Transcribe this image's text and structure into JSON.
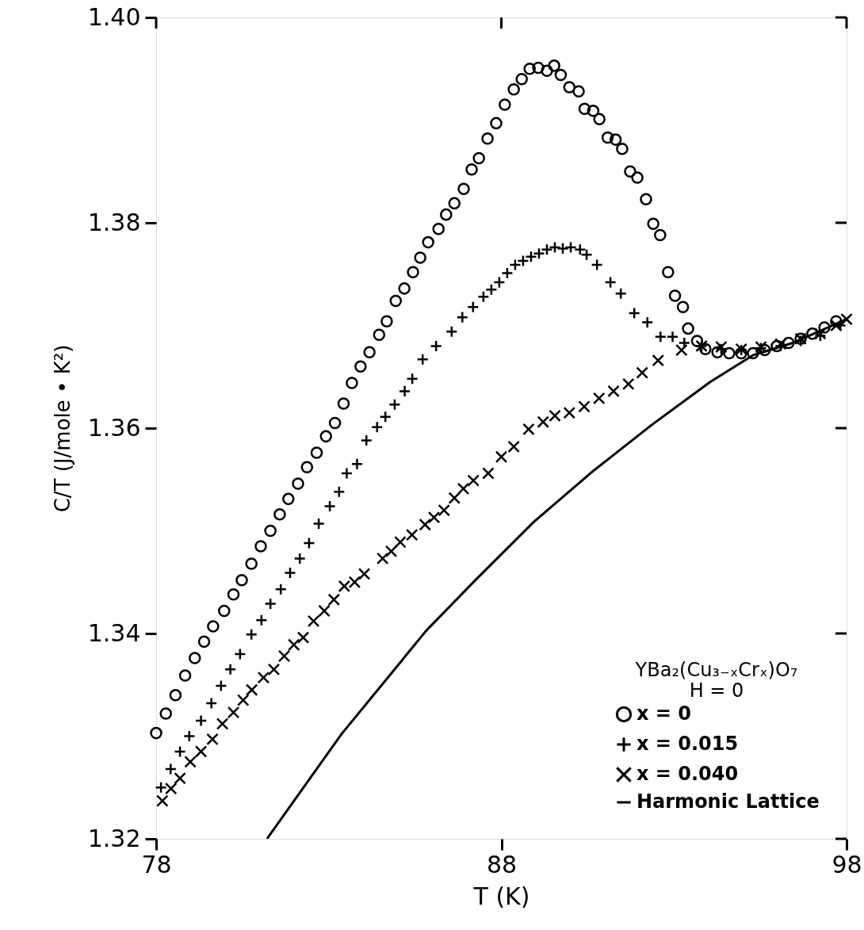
{
  "chart_data": {
    "type": "scatter",
    "xlabel": "T (K)",
    "ylabel": "C/T (J/mole • K²)",
    "legend_title": "YBa₂(Cu₃₋ₓCrₓ)O₇",
    "annotations": [
      "H = 0"
    ],
    "legend": "bottom right",
    "grid": false,
    "xlim": [
      78,
      98
    ],
    "xticks": [
      78,
      88,
      98
    ],
    "ylim": [
      1.32,
      1.4
    ],
    "yticks": [
      1.32,
      1.34,
      1.36,
      1.38,
      {
        "value": 1.4,
        "label": "1.40"
      }
    ],
    "series": [
      {
        "name": "x = 0",
        "color": "#000000",
        "marker": "circle",
        "x": [
          78.0,
          78.28,
          78.56,
          78.84,
          79.12,
          79.39,
          79.65,
          79.97,
          80.24,
          80.48,
          80.76,
          81.03,
          81.31,
          81.58,
          81.83,
          82.11,
          82.37,
          82.65,
          82.92,
          83.18,
          83.43,
          83.67,
          83.92,
          84.18,
          84.46,
          84.68,
          84.94,
          85.19,
          85.44,
          85.65,
          85.88,
          86.18,
          86.4,
          86.64,
          86.91,
          87.14,
          87.35,
          87.6,
          87.85,
          88.1,
          88.36,
          88.59,
          88.82,
          89.07,
          89.32,
          89.53,
          89.72,
          89.97,
          90.24,
          90.41,
          90.66,
          90.84,
          91.08,
          91.31,
          91.5,
          91.73,
          91.94,
          92.19,
          92.4,
          92.6,
          92.83,
          93.03,
          93.26,
          93.41,
          93.67,
          93.91,
          94.26,
          94.6,
          94.95,
          95.29,
          95.63,
          95.98,
          96.32,
          96.67,
          97.01,
          97.36,
          97.7
        ],
        "values": [
          1.3303,
          1.3322,
          1.334,
          1.3359,
          1.3376,
          1.3392,
          1.3407,
          1.3422,
          1.3438,
          1.3452,
          1.3468,
          1.3485,
          1.35,
          1.3516,
          1.3531,
          1.3546,
          1.3562,
          1.3576,
          1.3592,
          1.3605,
          1.3624,
          1.3644,
          1.366,
          1.3674,
          1.3691,
          1.3704,
          1.3724,
          1.3736,
          1.3752,
          1.3766,
          1.3781,
          1.3794,
          1.3808,
          1.3819,
          1.3833,
          1.3852,
          1.3863,
          1.3882,
          1.3897,
          1.3915,
          1.393,
          1.394,
          1.395,
          1.3951,
          1.3948,
          1.3953,
          1.3944,
          1.3932,
          1.3928,
          1.3911,
          1.3909,
          1.3901,
          1.3883,
          1.3881,
          1.3872,
          1.385,
          1.3844,
          1.3823,
          1.3799,
          1.3788,
          1.3752,
          1.3729,
          1.3718,
          1.3697,
          1.3685,
          1.3677,
          1.3674,
          1.3673,
          1.3673,
          1.3673,
          1.3676,
          1.368,
          1.3683,
          1.3687,
          1.3692,
          1.3698,
          1.3704
        ]
      },
      {
        "name": "x = 0.015",
        "color": "#000000",
        "marker": "cross",
        "x": [
          78.14,
          78.42,
          78.69,
          78.96,
          79.3,
          79.6,
          79.88,
          80.15,
          80.43,
          80.76,
          81.05,
          81.31,
          81.61,
          81.88,
          82.16,
          82.43,
          82.71,
          83.03,
          83.3,
          83.52,
          83.82,
          84.09,
          84.4,
          84.64,
          84.91,
          85.2,
          85.42,
          85.72,
          86.11,
          86.56,
          86.87,
          87.18,
          87.48,
          87.71,
          87.94,
          88.17,
          88.4,
          88.63,
          88.86,
          89.09,
          89.32,
          89.55,
          89.78,
          90.01,
          90.28,
          90.47,
          90.77,
          91.16,
          91.46,
          91.85,
          92.23,
          92.61,
          92.96,
          93.3,
          93.8,
          94.37,
          94.95,
          95.52,
          96.09,
          96.67,
          97.24,
          97.82
        ],
        "values": [
          1.325,
          1.3268,
          1.3285,
          1.33,
          1.3315,
          1.3332,
          1.3349,
          1.3365,
          1.338,
          1.3399,
          1.3413,
          1.3429,
          1.3443,
          1.3459,
          1.3473,
          1.3488,
          1.3507,
          1.3524,
          1.3538,
          1.3556,
          1.3565,
          1.3588,
          1.3601,
          1.3611,
          1.3623,
          1.3636,
          1.3648,
          1.3667,
          1.368,
          1.3694,
          1.3708,
          1.3718,
          1.3728,
          1.3735,
          1.3742,
          1.3751,
          1.3759,
          1.3763,
          1.3767,
          1.377,
          1.3774,
          1.3776,
          1.3775,
          1.3776,
          1.3774,
          1.3769,
          1.3759,
          1.3742,
          1.3731,
          1.3712,
          1.3703,
          1.3689,
          1.3689,
          1.3683,
          1.368,
          1.3677,
          1.3676,
          1.3678,
          1.368,
          1.3685,
          1.369,
          1.37
        ]
      },
      {
        "name": "x = 0.040",
        "color": "#000000",
        "marker": "x",
        "x": [
          78.18,
          78.43,
          78.69,
          78.99,
          79.3,
          79.63,
          79.92,
          80.24,
          80.52,
          80.77,
          81.11,
          81.41,
          81.71,
          81.99,
          82.26,
          82.56,
          82.87,
          83.15,
          83.45,
          83.75,
          84.03,
          84.56,
          84.81,
          85.07,
          85.41,
          85.79,
          86.05,
          86.34,
          86.64,
          86.9,
          87.19,
          87.62,
          88.0,
          88.36,
          88.79,
          89.21,
          89.55,
          89.97,
          90.4,
          90.83,
          91.25,
          91.68,
          92.08,
          92.54,
          93.22,
          93.8,
          94.37,
          94.95,
          95.52,
          96.09,
          96.67,
          97.24,
          97.7,
          98.0
        ],
        "values": [
          1.3237,
          1.3249,
          1.3259,
          1.3275,
          1.3285,
          1.3297,
          1.3312,
          1.3323,
          1.3335,
          1.3345,
          1.3357,
          1.3365,
          1.3378,
          1.3389,
          1.3396,
          1.3412,
          1.3422,
          1.3433,
          1.3446,
          1.345,
          1.3458,
          1.3473,
          1.348,
          1.3489,
          1.3496,
          1.3506,
          1.3513,
          1.352,
          1.3532,
          1.3541,
          1.3549,
          1.3556,
          1.3572,
          1.3582,
          1.3599,
          1.3606,
          1.3612,
          1.3615,
          1.3621,
          1.3629,
          1.3636,
          1.3643,
          1.3654,
          1.3666,
          1.3676,
          1.368,
          1.3679,
          1.3677,
          1.3679,
          1.3682,
          1.3687,
          1.3692,
          1.37,
          1.3706
        ]
      },
      {
        "name": "Harmonic Lattice",
        "type": "line",
        "color": "#000000",
        "line_style": "solid",
        "x": [
          81.21,
          83.37,
          85.83,
          87.25,
          88.95,
          90.65,
          92.35,
          94.05,
          95.29,
          96.44,
          98.0
        ],
        "values": [
          1.32,
          1.3302,
          1.3403,
          1.3452,
          1.3509,
          1.3558,
          1.3603,
          1.3645,
          1.3671,
          1.3683,
          1.3706
        ]
      }
    ]
  }
}
